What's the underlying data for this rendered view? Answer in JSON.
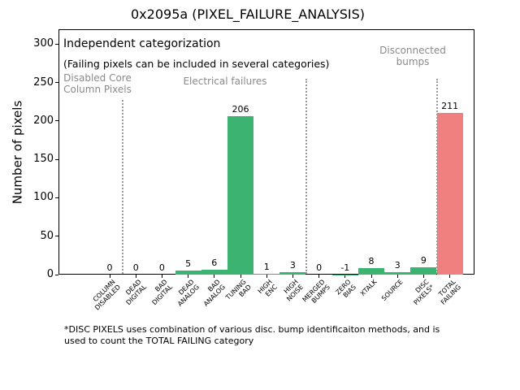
{
  "figure": {
    "title": "0x2095a (PIXEL_FAILURE_ANALYSIS)",
    "ylabel": "Number of pixels",
    "note_line1": "Independent categorization",
    "note_line2": "(Failing pixels can be included in several categories)",
    "section_label_disabled": "Disabled Core\nColumn Pixels",
    "section_label_electrical": "Electrical failures",
    "section_label_bumps": "Disconnected\nbumps",
    "footnote": "*DISC PIXELS uses combination of various disc. bump identificaiton methods, and is\nused to count the TOTAL FAILING category"
  },
  "chart_data": {
    "type": "bar",
    "title": "0x2095a (PIXEL_FAILURE_ANALYSIS)",
    "xlabel": "",
    "ylabel": "Number of pixels",
    "categories": [
      "COLUMN\nDISABLED",
      "DEAD\nDIGITAL",
      "BAD\nDIGITAL",
      "DEAD\nANALOG",
      "BAD\nANALOG",
      "TUNING\nBAD",
      "HIGH\nENC",
      "HIGH\nNOISE",
      "MERGED\nBUMPS",
      "ZERO\nBIAS",
      "XTALK",
      "SOURCE",
      "DISC\nPIXELS*",
      "TOTAL\nFAILING"
    ],
    "values": [
      0,
      0,
      0,
      5,
      6,
      206,
      1,
      3,
      0,
      -1,
      8,
      3,
      9,
      211
    ],
    "bar_value_labels": [
      "0",
      "0",
      "0",
      "5",
      "6",
      "206",
      "1",
      "3",
      "0",
      "-1",
      "8",
      "3",
      "9",
      "211"
    ],
    "yticks": [
      0,
      50,
      100,
      150,
      200,
      250,
      300
    ],
    "ylim": [
      0,
      320
    ],
    "grid": false,
    "legend": null,
    "bar_colors_rule": "all bars green except TOTAL FAILING which is red",
    "separator_indices": [
      0.5,
      7.5,
      12.5
    ],
    "annotations": [
      "Independent categorization",
      "(Failing pixels can be included in several categories)",
      "Disabled Core Column Pixels",
      "Electrical failures",
      "Disconnected bumps"
    ],
    "footnote": "*DISC PIXELS uses combination of various disc. bump identificaiton methods, and is used to count the TOTAL FAILING category"
  },
  "colors": {
    "bar_green": "#3cb371",
    "bar_red": "#f08080",
    "section_gray": "#8a8a8a",
    "separator_gray": "#9a9a9a",
    "axis_black": "#000000"
  }
}
